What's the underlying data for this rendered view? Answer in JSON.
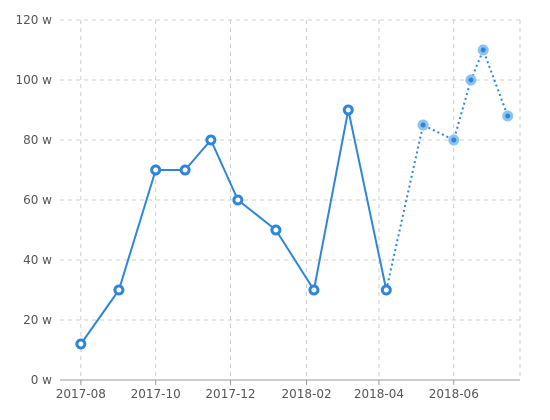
{
  "chart_data": {
    "type": "line",
    "title": "",
    "xlabel": "",
    "ylabel": "",
    "ylim": [
      0,
      120
    ],
    "y_ticks": [
      0,
      20,
      40,
      60,
      80,
      100,
      120
    ],
    "y_tick_suffix": " w",
    "x_ticks": [
      "2017-08",
      "2017-10",
      "2017-12",
      "2018-02",
      "2018-04",
      "2018-06"
    ],
    "x_range": [
      "2017-07-15",
      "2018-07-25"
    ],
    "grid": true,
    "colors": {
      "line": "#2d86d9",
      "forecast_ring": "#8cc3f0",
      "grid": "#cccccc",
      "axis": "#999999",
      "text": "#555555"
    },
    "series": [
      {
        "style": "solid",
        "points": [
          {
            "x": "2017-08-01",
            "y": 12
          },
          {
            "x": "2017-09-01",
            "y": 30
          },
          {
            "x": "2017-10-01",
            "y": 70
          },
          {
            "x": "2017-10-25",
            "y": 70
          },
          {
            "x": "2017-11-15",
            "y": 80
          },
          {
            "x": "2017-12-07",
            "y": 60
          },
          {
            "x": "2018-01-07",
            "y": 50
          },
          {
            "x": "2018-02-07",
            "y": 30
          },
          {
            "x": "2018-03-07",
            "y": 90
          },
          {
            "x": "2018-04-07",
            "y": 30
          }
        ]
      },
      {
        "style": "dotted",
        "points": [
          {
            "x": "2018-04-07",
            "y": 30
          },
          {
            "x": "2018-05-07",
            "y": 85
          },
          {
            "x": "2018-06-01",
            "y": 80
          },
          {
            "x": "2018-06-15",
            "y": 100
          },
          {
            "x": "2018-06-25",
            "y": 110
          },
          {
            "x": "2018-07-15",
            "y": 88
          }
        ]
      }
    ]
  }
}
